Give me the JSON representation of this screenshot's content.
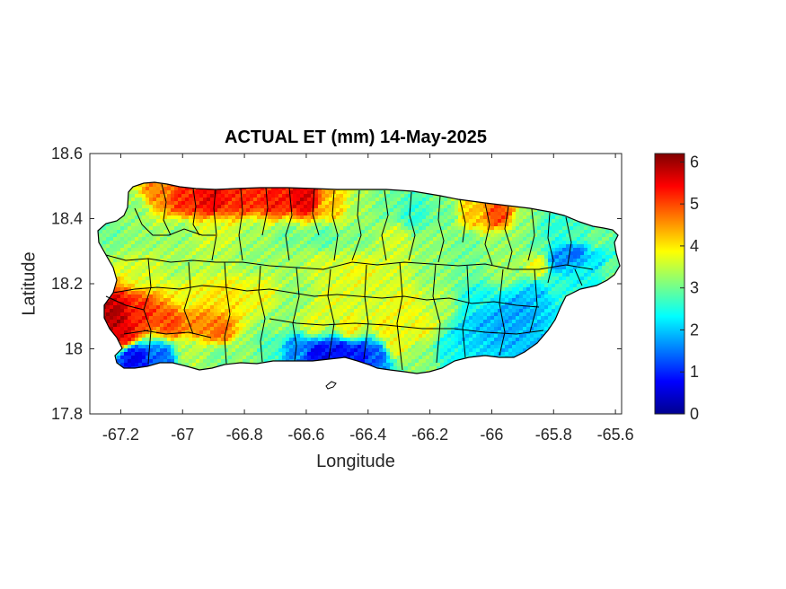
{
  "title": "ACTUAL ET (mm) 14-May-2025",
  "xlabel": "Longitude",
  "ylabel": "Latitude",
  "colors": {
    "low": "#00008f",
    "high": "#800000",
    "boundary": "#000000"
  },
  "chart_data": {
    "type": "heatmap",
    "colormap": "jet",
    "title": "ACTUAL ET (mm) 14-May-2025",
    "xlabel": "Longitude",
    "ylabel": "Latitude",
    "xlim": [
      -67.3,
      -65.58
    ],
    "ylim": [
      17.8,
      18.6
    ],
    "xticks": [
      -67.2,
      -67,
      -66.8,
      -66.6,
      -66.4,
      -66.2,
      -66,
      -65.8,
      -65.6
    ],
    "xtick_labels": [
      "-67.2",
      "-67",
      "-66.8",
      "-66.6",
      "-66.4",
      "-66.2",
      "-66",
      "-65.8",
      "-65.6"
    ],
    "yticks": [
      17.8,
      18,
      18.2,
      18.4,
      18.6
    ],
    "ytick_labels": [
      "17.8",
      "18",
      "18.2",
      "18.4",
      "18.6"
    ],
    "colorbar": {
      "range": [
        0,
        6.2
      ],
      "ticks": [
        0,
        1,
        2,
        3,
        4,
        5,
        6
      ],
      "tick_labels": [
        "0",
        "1",
        "2",
        "3",
        "4",
        "5",
        "6"
      ]
    },
    "grid": false
  }
}
